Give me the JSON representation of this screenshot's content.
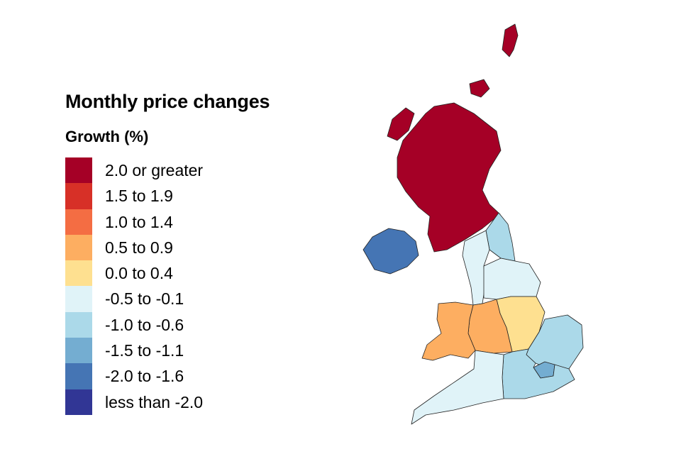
{
  "title": "Monthly price changes",
  "subtitle": "Growth (%)",
  "legend": [
    {
      "label": "2.0 or greater",
      "color": "#a50026"
    },
    {
      "label": "1.5 to 1.9",
      "color": "#d73027"
    },
    {
      "label": "1.0 to 1.4",
      "color": "#f46d43"
    },
    {
      "label": "0.5 to 0.9",
      "color": "#fdae61"
    },
    {
      "label": "0.0 to 0.4",
      "color": "#fee090"
    },
    {
      "label": "-0.5 to -0.1",
      "color": "#e0f3f8"
    },
    {
      "label": "-1.0 to -0.6",
      "color": "#abd9e9"
    },
    {
      "label": "-1.5 to -1.1",
      "color": "#74add1"
    },
    {
      "label": "-2.0 to -1.6",
      "color": "#4575b4"
    },
    {
      "label": "less than -2.0",
      "color": "#313695"
    }
  ],
  "regions": [
    {
      "name": "Scotland",
      "band": "2.0 or greater",
      "color": "#a50026"
    },
    {
      "name": "Northern Ireland",
      "band": "-2.0 to -1.6",
      "color": "#4575b4"
    },
    {
      "name": "North East",
      "band": "-1.0 to -0.6",
      "color": "#abd9e9"
    },
    {
      "name": "North West",
      "band": "-0.5 to -0.1",
      "color": "#e0f3f8"
    },
    {
      "name": "Yorkshire and The Humber",
      "band": "-0.5 to -0.1",
      "color": "#e0f3f8"
    },
    {
      "name": "East Midlands",
      "band": "0.0 to 0.4",
      "color": "#fee090"
    },
    {
      "name": "West Midlands",
      "band": "0.5 to 0.9",
      "color": "#fdae61"
    },
    {
      "name": "Wales",
      "band": "0.5 to 0.9",
      "color": "#fdae61"
    },
    {
      "name": "East of England",
      "band": "-1.0 to -0.6",
      "color": "#abd9e9"
    },
    {
      "name": "London",
      "band": "-1.5 to -1.1",
      "color": "#74add1"
    },
    {
      "name": "South East",
      "band": "-1.0 to -0.6",
      "color": "#abd9e9"
    },
    {
      "name": "South West",
      "band": "-0.5 to -0.1",
      "color": "#e0f3f8"
    }
  ]
}
